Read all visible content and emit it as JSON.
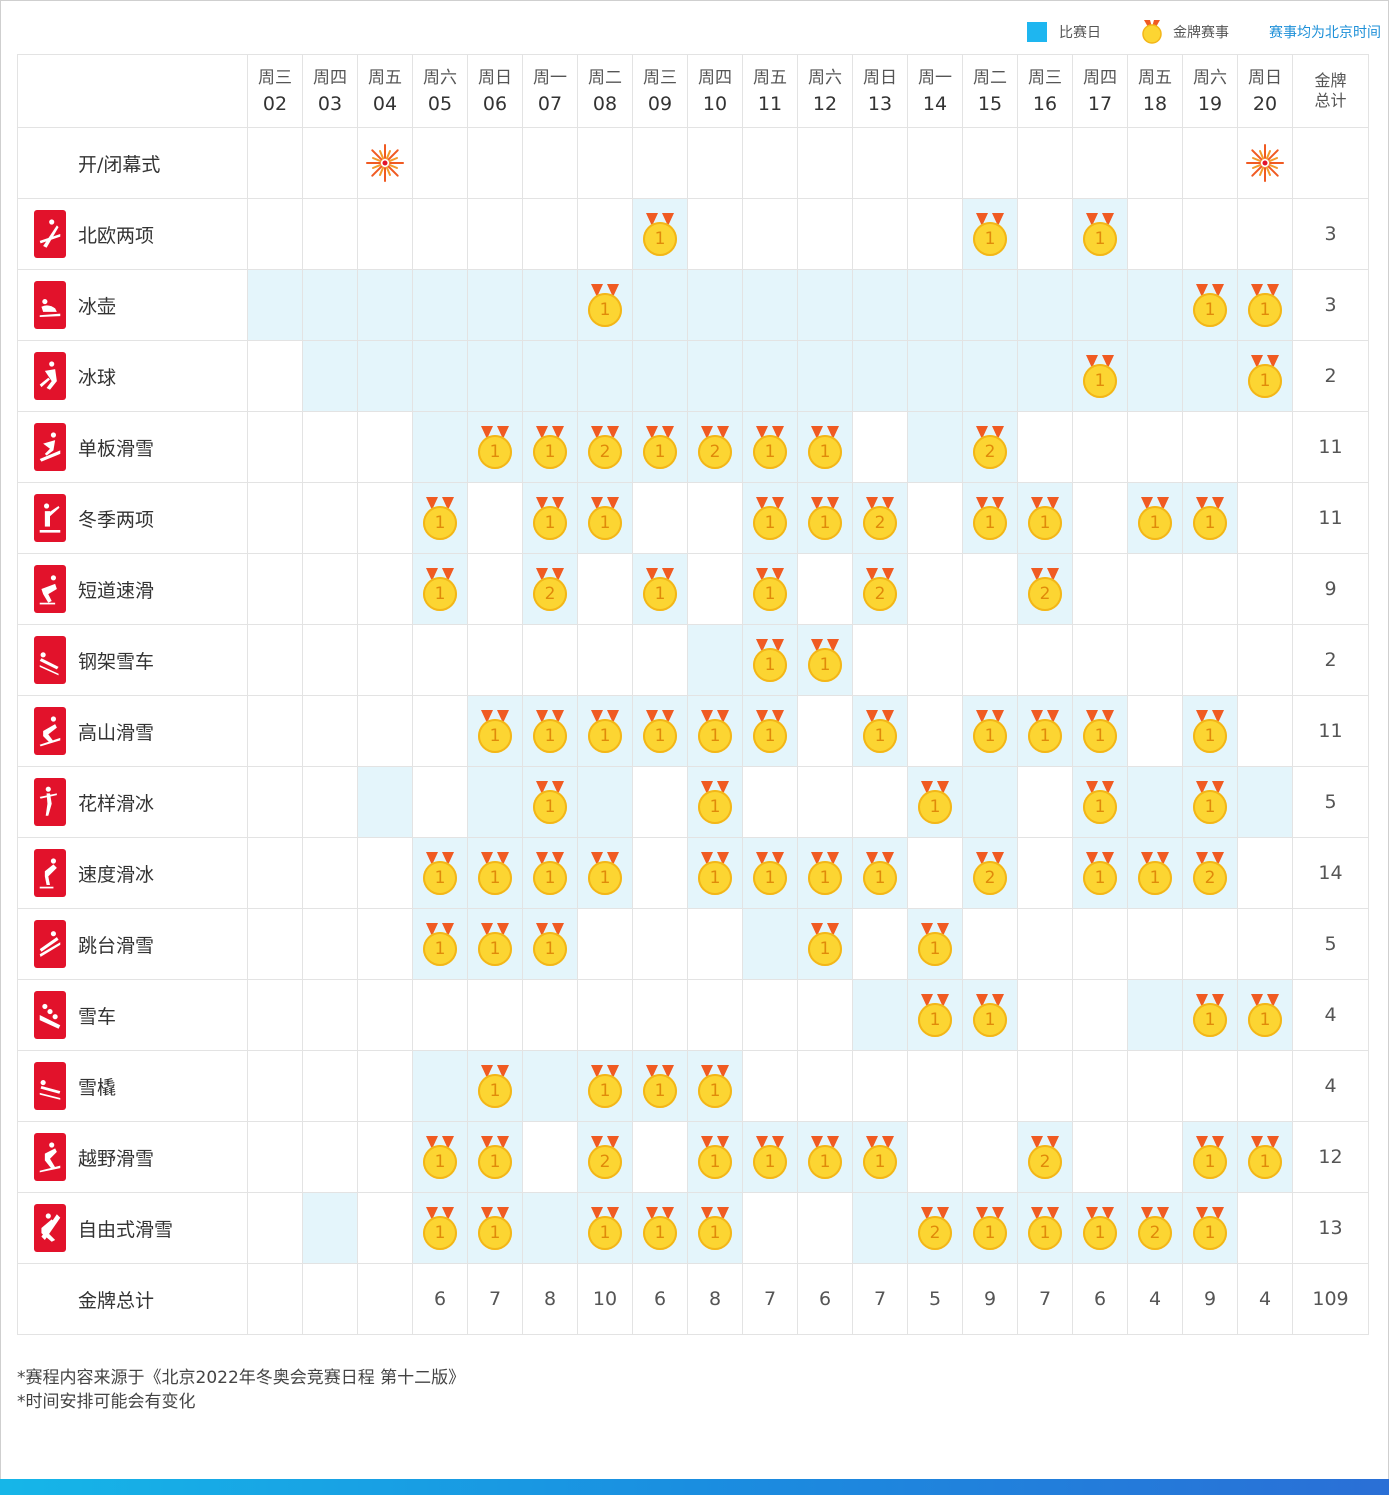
{
  "legend": {
    "competition_day": "比赛日",
    "gold_event": "金牌赛事",
    "timezone_note": "赛事均为北京时间"
  },
  "colors": {
    "competition_bg": "#e4f5fb",
    "legend_blue": "#1eb6f0",
    "pictogram_red": "#e2122b",
    "medal_gold": "#fcd532",
    "ribbon": "#f05a22"
  },
  "days": [
    {
      "weekday": "周三",
      "date": "02"
    },
    {
      "weekday": "周四",
      "date": "03"
    },
    {
      "weekday": "周五",
      "date": "04"
    },
    {
      "weekday": "周六",
      "date": "05"
    },
    {
      "weekday": "周日",
      "date": "06"
    },
    {
      "weekday": "周一",
      "date": "07"
    },
    {
      "weekday": "周二",
      "date": "08"
    },
    {
      "weekday": "周三",
      "date": "09"
    },
    {
      "weekday": "周四",
      "date": "10"
    },
    {
      "weekday": "周五",
      "date": "11"
    },
    {
      "weekday": "周六",
      "date": "12"
    },
    {
      "weekday": "周日",
      "date": "13"
    },
    {
      "weekday": "周一",
      "date": "14"
    },
    {
      "weekday": "周二",
      "date": "15"
    },
    {
      "weekday": "周三",
      "date": "16"
    },
    {
      "weekday": "周四",
      "date": "17"
    },
    {
      "weekday": "周五",
      "date": "18"
    },
    {
      "weekday": "周六",
      "date": "19"
    },
    {
      "weekday": "周日",
      "date": "20"
    }
  ],
  "total_header": [
    "金牌",
    "总计"
  ],
  "ceremony": {
    "label": "开/闭幕式",
    "days_index": [
      2,
      18
    ],
    "icon": "fireworks-icon"
  },
  "sports": [
    {
      "name": "北欧两项",
      "icon": "nordic-combined-icon",
      "total": "3",
      "comp": [
        7,
        13,
        15
      ],
      "medals": {
        "7": "1",
        "13": "1",
        "15": "1"
      }
    },
    {
      "name": "冰壶",
      "icon": "curling-icon",
      "total": "3",
      "comp": [
        0,
        1,
        2,
        3,
        4,
        5,
        6,
        7,
        8,
        9,
        10,
        11,
        12,
        13,
        14,
        15,
        16,
        17,
        18
      ],
      "medals": {
        "6": "1",
        "17": "1",
        "18": "1"
      }
    },
    {
      "name": "冰球",
      "icon": "ice-hockey-icon",
      "total": "2",
      "comp": [
        1,
        2,
        3,
        4,
        5,
        6,
        7,
        8,
        9,
        10,
        11,
        12,
        13,
        14,
        15,
        16,
        17,
        18
      ],
      "medals": {
        "15": "1",
        "18": "1"
      }
    },
    {
      "name": "单板滑雪",
      "icon": "snowboard-icon",
      "total": "11",
      "comp": [
        3,
        4,
        5,
        6,
        7,
        8,
        9,
        10,
        12,
        13
      ],
      "medals": {
        "4": "1",
        "5": "1",
        "6": "2",
        "7": "1",
        "8": "2",
        "9": "1",
        "10": "1",
        "13": "2"
      }
    },
    {
      "name": "冬季两项",
      "icon": "biathlon-icon",
      "total": "11",
      "comp": [
        3,
        5,
        6,
        9,
        10,
        11,
        13,
        14,
        16,
        17
      ],
      "medals": {
        "3": "1",
        "5": "1",
        "6": "1",
        "9": "1",
        "10": "1",
        "11": "2",
        "13": "1",
        "14": "1",
        "16": "1",
        "17": "1"
      }
    },
    {
      "name": "短道速滑",
      "icon": "short-track-icon",
      "total": "9",
      "comp": [
        3,
        5,
        7,
        9,
        11,
        14
      ],
      "medals": {
        "3": "1",
        "5": "2",
        "7": "1",
        "9": "1",
        "11": "2",
        "14": "2"
      }
    },
    {
      "name": "钢架雪车",
      "icon": "skeleton-icon",
      "total": "2",
      "comp": [
        8,
        9,
        10
      ],
      "medals": {
        "9": "1",
        "10": "1"
      }
    },
    {
      "name": "高山滑雪",
      "icon": "alpine-skiing-icon",
      "total": "11",
      "comp": [
        4,
        5,
        6,
        7,
        8,
        9,
        11,
        13,
        14,
        15,
        17
      ],
      "medals": {
        "4": "1",
        "5": "1",
        "6": "1",
        "7": "1",
        "8": "1",
        "9": "1",
        "11": "1",
        "13": "1",
        "14": "1",
        "15": "1",
        "17": "1"
      }
    },
    {
      "name": "花样滑冰",
      "icon": "figure-skating-icon",
      "total": "5",
      "comp": [
        2,
        4,
        5,
        6,
        8,
        12,
        13,
        15,
        16,
        17,
        18
      ],
      "medals": {
        "5": "1",
        "8": "1",
        "12": "1",
        "15": "1",
        "17": "1"
      }
    },
    {
      "name": "速度滑冰",
      "icon": "speed-skating-icon",
      "total": "14",
      "comp": [
        3,
        4,
        5,
        6,
        8,
        9,
        10,
        11,
        13,
        15,
        16,
        17
      ],
      "medals": {
        "3": "1",
        "4": "1",
        "5": "1",
        "6": "1",
        "8": "1",
        "9": "1",
        "10": "1",
        "11": "1",
        "13": "2",
        "15": "1",
        "16": "1",
        "17": "2"
      }
    },
    {
      "name": "跳台滑雪",
      "icon": "ski-jumping-icon",
      "total": "5",
      "comp": [
        3,
        4,
        5,
        9,
        10,
        12
      ],
      "medals": {
        "3": "1",
        "4": "1",
        "5": "1",
        "10": "1",
        "12": "1"
      }
    },
    {
      "name": "雪车",
      "icon": "bobsleigh-icon",
      "total": "4",
      "comp": [
        11,
        12,
        13,
        16,
        17,
        18
      ],
      "medals": {
        "12": "1",
        "13": "1",
        "17": "1",
        "18": "1"
      }
    },
    {
      "name": "雪橇",
      "icon": "luge-icon",
      "total": "4",
      "comp": [
        3,
        4,
        5,
        6,
        7,
        8
      ],
      "medals": {
        "4": "1",
        "6": "1",
        "7": "1",
        "8": "1"
      }
    },
    {
      "name": "越野滑雪",
      "icon": "cross-country-icon",
      "total": "12",
      "comp": [
        3,
        4,
        6,
        8,
        9,
        10,
        11,
        14,
        17,
        18
      ],
      "medals": {
        "3": "1",
        "4": "1",
        "6": "2",
        "8": "1",
        "9": "1",
        "10": "1",
        "11": "1",
        "14": "2",
        "17": "1",
        "18": "1"
      }
    },
    {
      "name": "自由式滑雪",
      "icon": "freestyle-icon",
      "total": "13",
      "comp": [
        1,
        3,
        4,
        5,
        6,
        7,
        8,
        11,
        12,
        13,
        14,
        15,
        16,
        17
      ],
      "medals": {
        "3": "1",
        "4": "1",
        "6": "1",
        "7": "1",
        "8": "1",
        "12": "2",
        "13": "1",
        "14": "1",
        "15": "1",
        "16": "2",
        "17": "1"
      }
    }
  ],
  "totals_row": {
    "label": "金牌总计",
    "values": [
      "",
      "",
      "",
      "6",
      "7",
      "8",
      "10",
      "6",
      "8",
      "7",
      "6",
      "7",
      "5",
      "9",
      "7",
      "6",
      "4",
      "9",
      "4"
    ],
    "grand_total": "109"
  },
  "notes": [
    "*赛程内容来源于《北京2022年冬奥会竞赛日程 第十二版》",
    "*时间安排可能会有变化"
  ]
}
